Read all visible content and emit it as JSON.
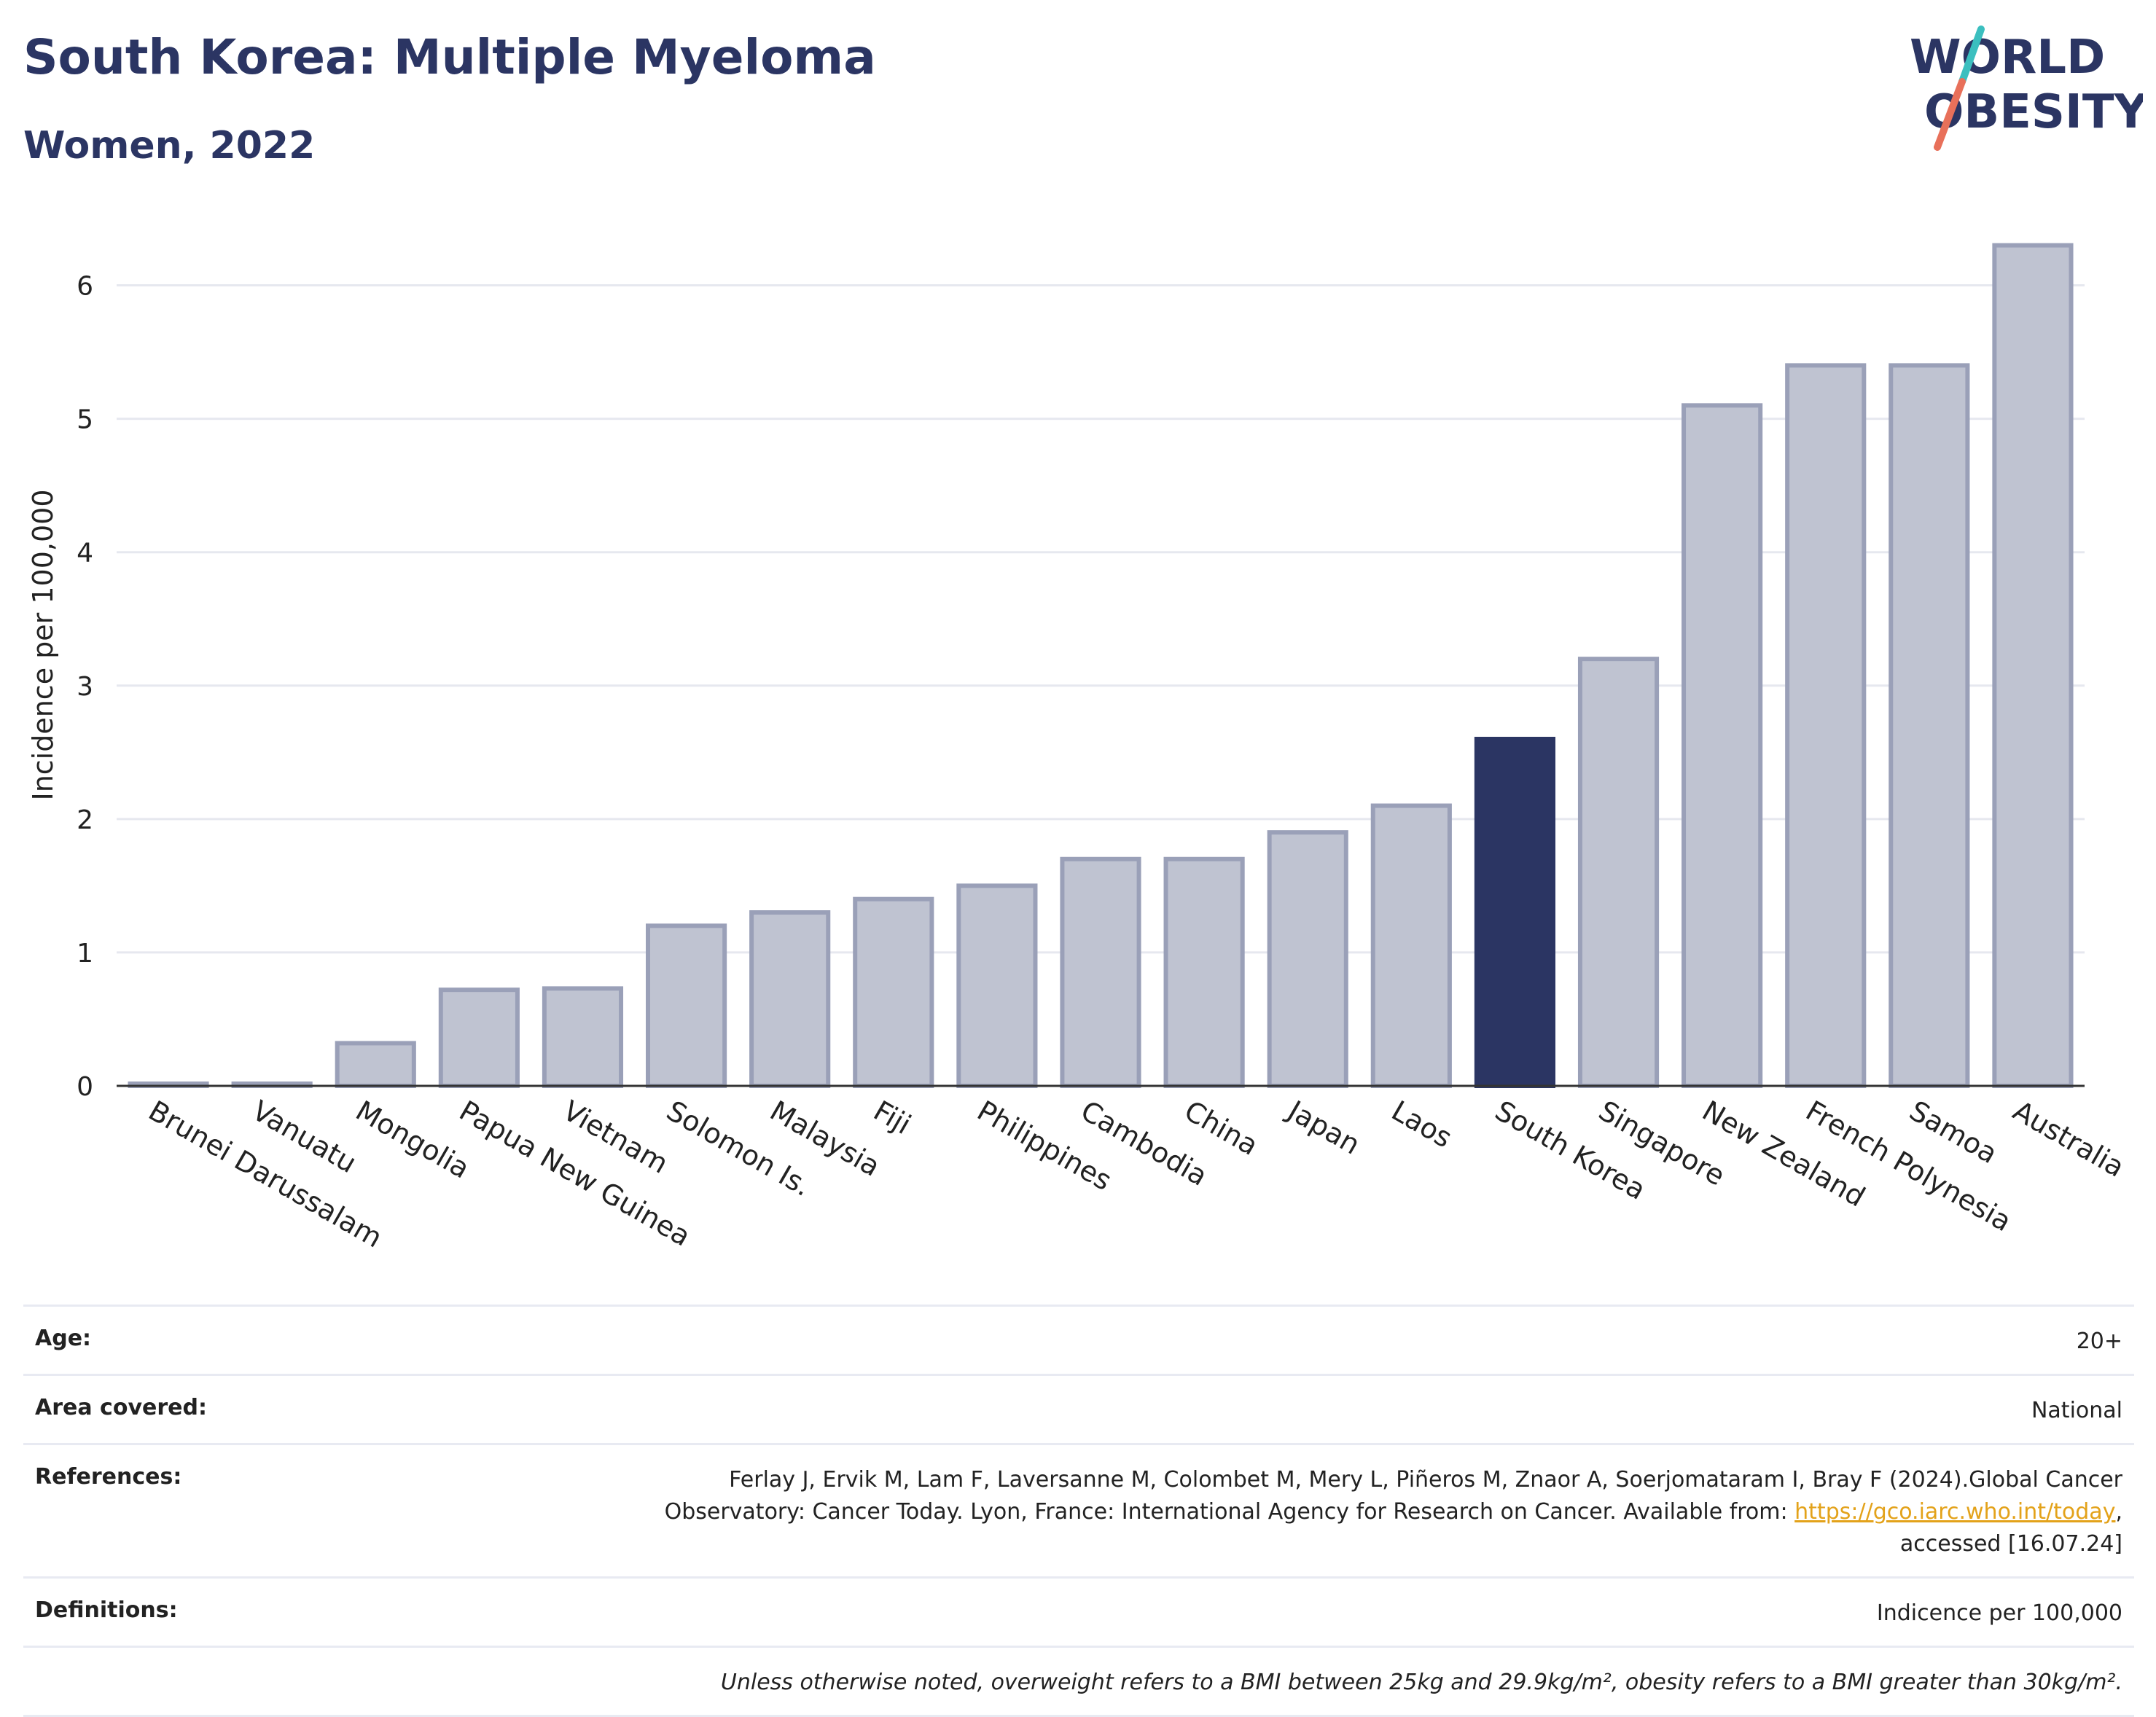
{
  "header": {
    "title": "South Korea: Multiple Myeloma",
    "subtitle": "Women, 2022"
  },
  "logo": {
    "line1": "WORLD",
    "line2": "OBESITY",
    "text_color": "#2b3563",
    "slash_color_top": "#3bbfbf",
    "slash_color_bottom": "#e8705a"
  },
  "chart_data": {
    "type": "bar",
    "ylabel": "Incidence per 100,000",
    "ylim": [
      0,
      6.5
    ],
    "yticks": [
      0,
      1,
      2,
      3,
      4,
      5,
      6
    ],
    "grid": true,
    "highlight": "South Korea",
    "highlight_color": "#2b3563",
    "bar_color": "#bfc3d1",
    "bar_edge_color": "#9aa0b8",
    "categories": [
      "Brunei Darussalam",
      "Vanuatu",
      "Mongolia",
      "Papua New Guinea",
      "Vietnam",
      "Solomon Is.",
      "Malaysia",
      "Fiji",
      "Philippines",
      "Cambodia",
      "China",
      "Japan",
      "Laos",
      "South Korea",
      "Singapore",
      "New Zealand",
      "French Polynesia",
      "Samoa",
      "Australia"
    ],
    "values": [
      0.0,
      0.0,
      0.32,
      0.72,
      0.73,
      1.2,
      1.3,
      1.4,
      1.5,
      1.7,
      1.7,
      1.9,
      2.1,
      2.6,
      3.2,
      5.1,
      5.4,
      5.4,
      6.3
    ]
  },
  "info": {
    "age_label": "Age:",
    "age_value": "20+",
    "area_label": "Area covered:",
    "area_value": "National",
    "references_label": "References:",
    "references_line1": "Ferlay J, Ervik M, Lam F, Laversanne M, Colombet M, Mery L, Piñeros M, Znaor A, Soerjomataram I, Bray F (2024).Global Cancer",
    "references_line2_pre": "Observatory: Cancer Today. Lyon, France: International Agency for Research on Cancer. Available from: ",
    "references_link": "https://gco.iarc.who.int/today",
    "references_line2_post": ",",
    "references_line3": "accessed [16.07.24]",
    "definitions_label": "Definitions:",
    "definitions_value": "Indicence per 100,000",
    "note": "Unless otherwise noted, overweight refers to a BMI between 25kg and 29.9kg/m², obesity refers to a BMI greater than 30kg/m²."
  }
}
